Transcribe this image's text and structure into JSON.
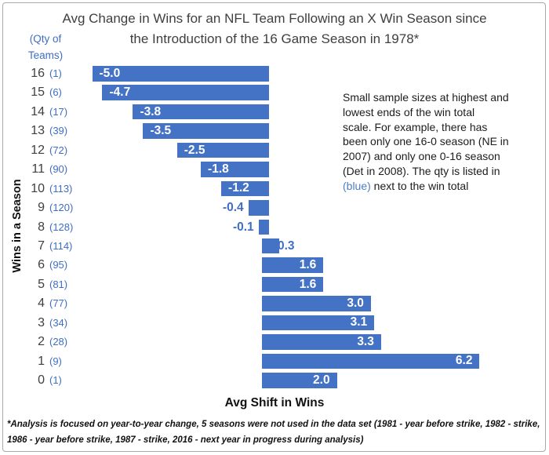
{
  "title": {
    "line1": "Avg Change in Wins for an NFL Team Following an X Win Season since",
    "line2": "the Introduction of the 16 Game Season in 1978*"
  },
  "qty_header": {
    "line1": "(Qty of",
    "line2": "Teams)"
  },
  "axes": {
    "x_title": "Avg Shift in Wins",
    "y_title": "Wins in a Season"
  },
  "annotation": {
    "lines": [
      "Small sample sizes at highest and",
      "lowest ends of the win total",
      "scale. For example, there has",
      "been only one 16-0 season (NE in",
      "2007) and only one 0-16 season",
      "(Det in 2008). The qty is listed in"
    ],
    "last_line_blue": "(blue)",
    "last_line_rest": " next to the win total"
  },
  "footnote": {
    "line1": "*Analysis is focused on year-to-year change, 5 seasons were not used in the data set (1981 - year before strike, 1982 - strike,",
    "line2": "1986 - year before strike, 1987 - strike, 2016 - next year in progress during analysis)"
  },
  "chart_data": {
    "type": "bar",
    "orientation": "horizontal",
    "title": "Avg Change in Wins for an NFL Team Following an X Win Season since the Introduction of the 16 Game Season in 1978*",
    "xlabel": "Avg Shift in Wins",
    "ylabel": "Wins in a Season",
    "xlim": [
      -5.5,
      6.5
    ],
    "grid": false,
    "legend": false,
    "categories": [
      16,
      15,
      14,
      13,
      12,
      11,
      10,
      9,
      8,
      7,
      6,
      5,
      4,
      3,
      2,
      1,
      0
    ],
    "qty_of_teams": [
      1,
      6,
      17,
      39,
      72,
      90,
      113,
      120,
      128,
      114,
      95,
      81,
      77,
      34,
      28,
      9,
      1
    ],
    "values": [
      -5.0,
      -4.7,
      -3.8,
      -3.5,
      -2.5,
      -1.8,
      -1.2,
      -0.4,
      -0.1,
      0.3,
      1.6,
      1.6,
      3.0,
      3.1,
      3.3,
      6.2,
      2.0
    ],
    "bar_color": "#4472C4",
    "value_label_inside_color": "#FFFFFF",
    "value_label_outside_color": "#3F6EC2"
  },
  "colors": {
    "bar_blue": "#4472C4",
    "accent_text_blue": "#3F6EC2",
    "title_gray": "#3F3F3F",
    "text_black": "#1C1C1C",
    "border_gray": "#A9A9A9",
    "background": "#FFFFFF"
  }
}
